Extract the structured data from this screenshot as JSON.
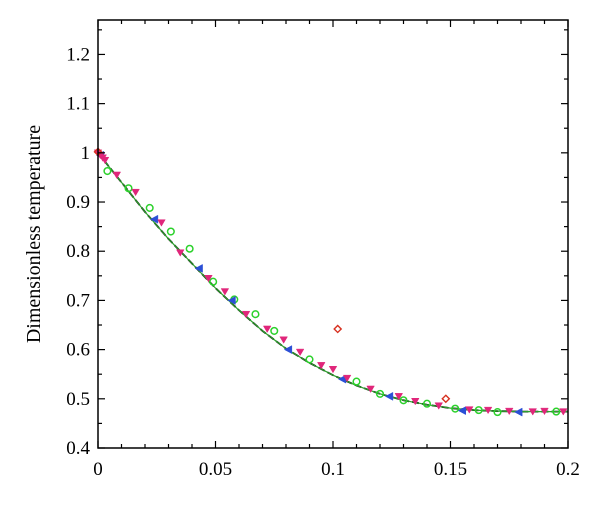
{
  "chart_data": {
    "type": "line",
    "title": "",
    "xlabel": "",
    "ylabel": "Dimensionless temperature",
    "xlim": [
      0,
      0.2
    ],
    "ylim": [
      0.4,
      1.27
    ],
    "grid": false,
    "x_ticks": [
      0,
      0.05,
      0.1,
      0.15,
      0.2
    ],
    "x_tick_labels": [
      "0",
      "0.05",
      "0.1",
      "0.15",
      "0.2"
    ],
    "y_ticks": [
      0.4,
      0.5,
      0.6,
      0.7,
      0.8,
      0.9,
      1.0,
      1.1,
      1.2
    ],
    "y_tick_labels": [
      "0.4",
      "0.5",
      "0.6",
      "0.7",
      "0.8",
      "0.9",
      "1",
      "1.1",
      "1.2"
    ],
    "series": [
      {
        "style": "line",
        "color": "#000000",
        "dash": "dashed",
        "x": [
          0,
          0.01,
          0.02,
          0.03,
          0.04,
          0.05,
          0.06,
          0.07,
          0.08,
          0.09,
          0.1,
          0.11,
          0.12,
          0.13,
          0.14,
          0.15,
          0.16,
          0.17,
          0.18,
          0.19,
          0.2
        ],
        "y": [
          1.0,
          0.94,
          0.88,
          0.825,
          0.775,
          0.725,
          0.68,
          0.638,
          0.602,
          0.573,
          0.548,
          0.527,
          0.51,
          0.497,
          0.488,
          0.481,
          0.477,
          0.475,
          0.474,
          0.474,
          0.474
        ]
      },
      {
        "style": "line",
        "color": "#2ca02c",
        "dash": "solid",
        "x": [
          0,
          0.01,
          0.02,
          0.03,
          0.04,
          0.05,
          0.06,
          0.07,
          0.08,
          0.09,
          0.1,
          0.11,
          0.12,
          0.13,
          0.14,
          0.15,
          0.16,
          0.17,
          0.18,
          0.19,
          0.2
        ],
        "y": [
          1.0,
          0.94,
          0.88,
          0.825,
          0.775,
          0.725,
          0.68,
          0.638,
          0.602,
          0.573,
          0.548,
          0.527,
          0.51,
          0.497,
          0.488,
          0.481,
          0.477,
          0.475,
          0.474,
          0.474,
          0.474
        ]
      },
      {
        "style": "markers",
        "marker": "circle",
        "color": "#2bd12b",
        "x": [
          0.004,
          0.013,
          0.022,
          0.031,
          0.039,
          0.049,
          0.058,
          0.067,
          0.075,
          0.09,
          0.11,
          0.12,
          0.13,
          0.14,
          0.152,
          0.162,
          0.17,
          0.195
        ],
        "y": [
          0.963,
          0.928,
          0.888,
          0.84,
          0.805,
          0.738,
          0.702,
          0.672,
          0.638,
          0.58,
          0.535,
          0.51,
          0.497,
          0.49,
          0.48,
          0.477,
          0.473,
          0.474
        ]
      },
      {
        "style": "markers",
        "marker": "triangle-left",
        "color": "#2b4fd6",
        "x": [
          0.001,
          0.024,
          0.043,
          0.057,
          0.081,
          0.104,
          0.124,
          0.155,
          0.179
        ],
        "y": [
          0.995,
          0.865,
          0.765,
          0.7,
          0.6,
          0.54,
          0.505,
          0.476,
          0.473
        ]
      },
      {
        "style": "markers",
        "marker": "triangle-down",
        "color": "#e0267a",
        "x": [
          0.0,
          0.001,
          0.002,
          0.003,
          0.008,
          0.016,
          0.027,
          0.035,
          0.047,
          0.054,
          0.063,
          0.072,
          0.079,
          0.086,
          0.095,
          0.1,
          0.106,
          0.116,
          0.128,
          0.135,
          0.145,
          0.158,
          0.166,
          0.175,
          0.185,
          0.19,
          0.198
        ],
        "y": [
          1.0,
          0.995,
          0.99,
          0.985,
          0.955,
          0.92,
          0.858,
          0.797,
          0.745,
          0.718,
          0.672,
          0.642,
          0.62,
          0.595,
          0.568,
          0.56,
          0.542,
          0.52,
          0.505,
          0.495,
          0.486,
          0.478,
          0.477,
          0.475,
          0.474,
          0.475,
          0.474
        ]
      },
      {
        "style": "markers",
        "marker": "diamond",
        "color": "#d7301f",
        "x": [
          0.0,
          0.102,
          0.148
        ],
        "y": [
          1.002,
          0.642,
          0.5
        ]
      }
    ]
  }
}
